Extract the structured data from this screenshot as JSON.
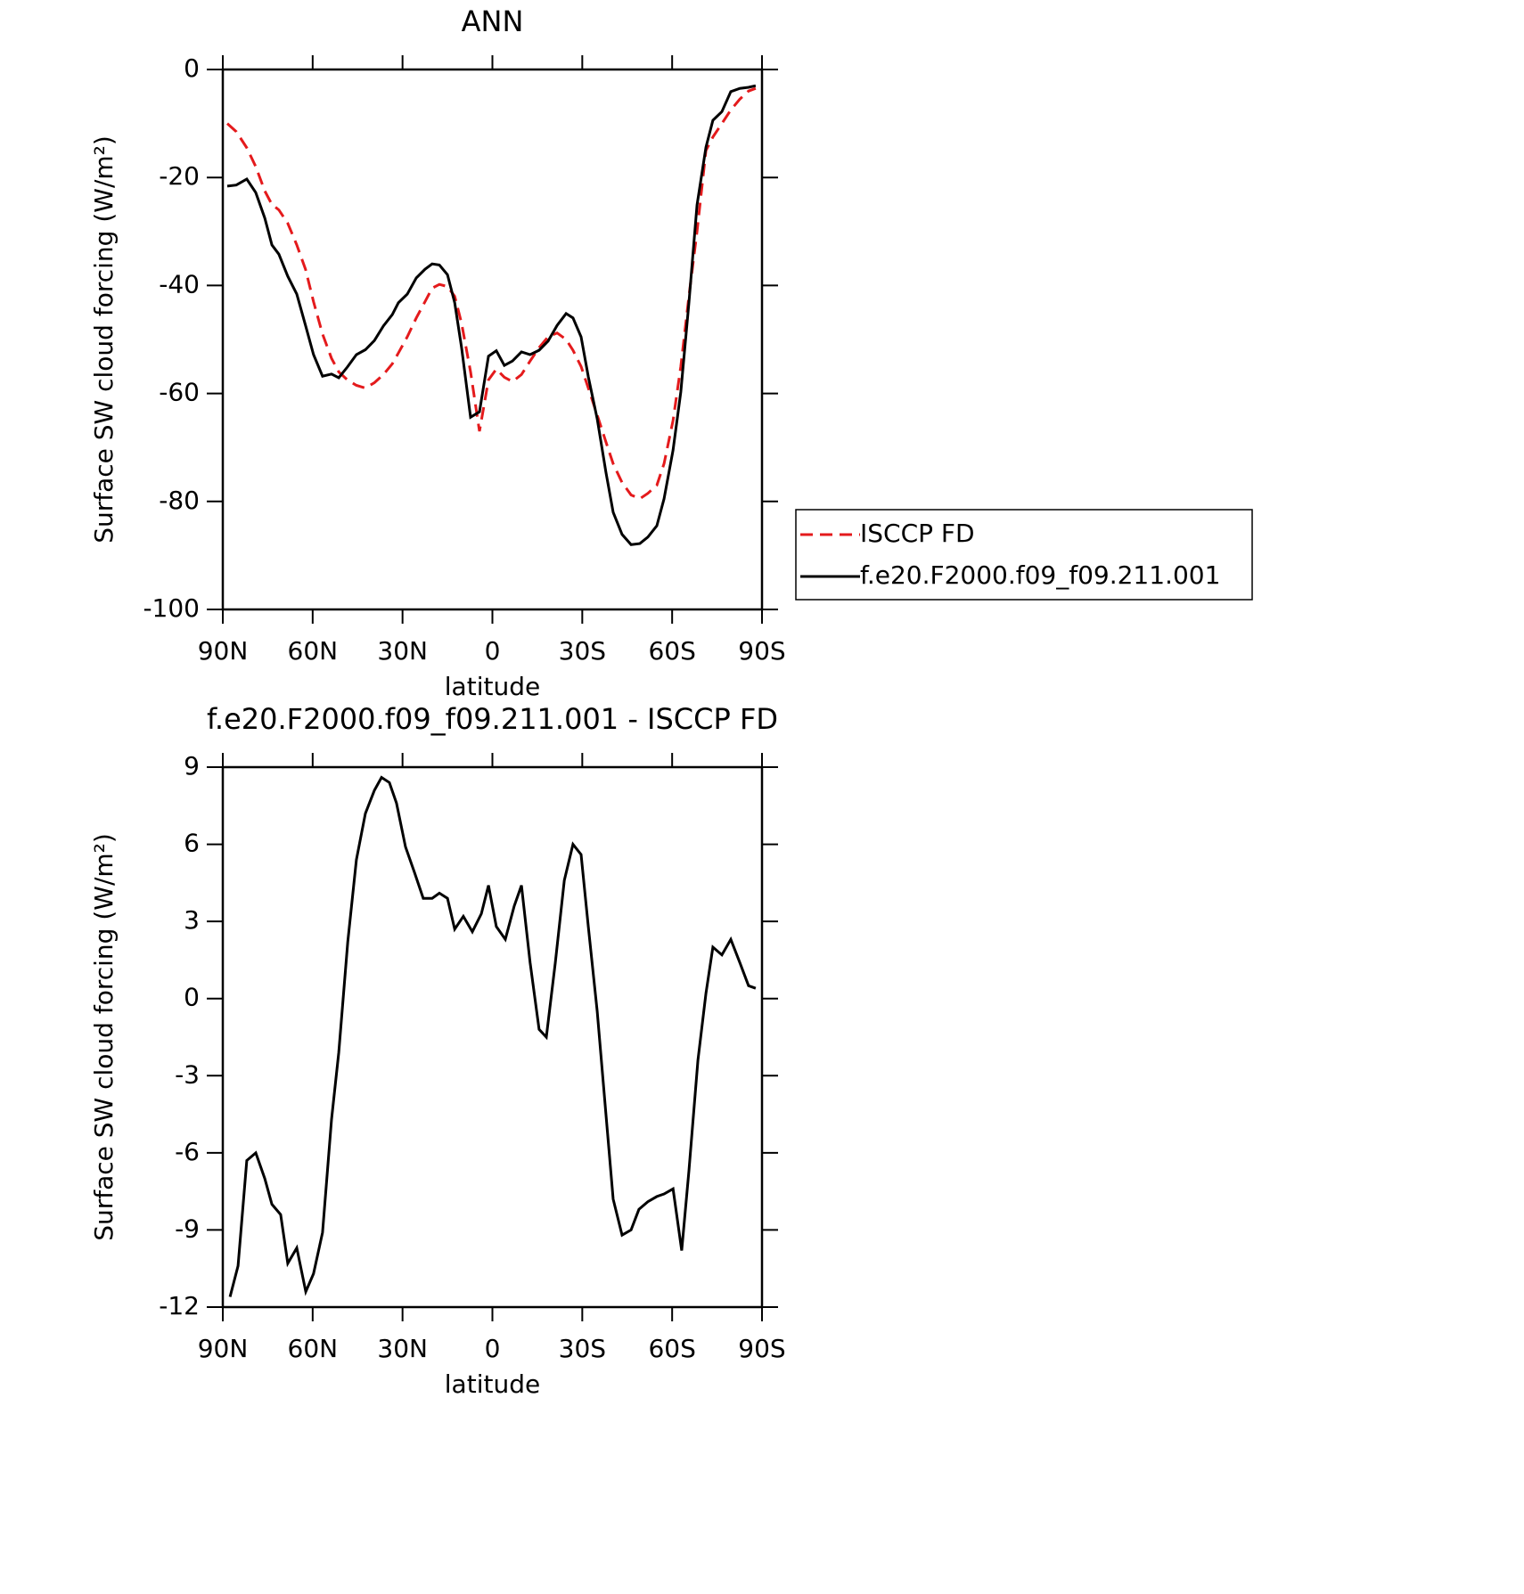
{
  "chart_data": [
    {
      "type": "line",
      "title": "ANN",
      "xlabel": "latitude",
      "ylabel": "Surface SW cloud forcing (W/m²)",
      "x": [
        88.5,
        85.5,
        82,
        79,
        76,
        73.6,
        71.3,
        68.3,
        65.3,
        62.4,
        59.7,
        56.7,
        53.7,
        51.3,
        48.4,
        45.4,
        42.4,
        39.4,
        36.4,
        33.4,
        31.4,
        28.4,
        25.4,
        22.5,
        20.1,
        17.7,
        15,
        12.6,
        10.3,
        7.3,
        4.3,
        1.3,
        -1.3,
        -4,
        -6.7,
        -9.7,
        -12.6,
        -15.6,
        -18.6,
        -21.6,
        -24.6,
        -26.9,
        -29.6,
        -32,
        -35,
        -37.9,
        -40.3,
        -43.3,
        -46.3,
        -49.2,
        -51.9,
        -54.9,
        -57.3,
        -60.3,
        -62.9,
        -65.6,
        -68.3,
        -71.3,
        -73.6,
        -76.6,
        -79.6,
        -82.6,
        -85.5,
        -87.9
      ],
      "series": [
        {
          "name": "ISCCP FD",
          "color": "#e41a1c",
          "dashed": true,
          "values": [
            -10,
            -11.5,
            -14.5,
            -18,
            -22.5,
            -25,
            -26,
            -28.5,
            -32.5,
            -37,
            -43,
            -49,
            -53.5,
            -56,
            -57.5,
            -58.5,
            -59,
            -58,
            -56.5,
            -54.5,
            -52.5,
            -49.5,
            -46,
            -43,
            -40.5,
            -39.8,
            -40.2,
            -42,
            -47,
            -56,
            -67,
            -57.5,
            -55.5,
            -57,
            -57.8,
            -56.5,
            -54,
            -51.5,
            -49.5,
            -48.8,
            -50,
            -52,
            -55,
            -59,
            -64,
            -69,
            -73,
            -76.5,
            -78.8,
            -79.5,
            -78.5,
            -77,
            -73,
            -65,
            -55,
            -42,
            -30,
            -15,
            -12.5,
            -10,
            -7.5,
            -5.5,
            -4,
            -3.5
          ]
        },
        {
          "name": "f.e20.F2000.f09_f09.211.001",
          "color": "#000000",
          "dashed": false,
          "values": [
            -21.6,
            -21.4,
            -20.3,
            -22.8,
            -27.5,
            -32.5,
            -34.2,
            -38.3,
            -41.6,
            -47.4,
            -52.8,
            -56.8,
            -56.4,
            -57.1,
            -55.1,
            -52.8,
            -51.9,
            -50.2,
            -47.5,
            -45.4,
            -43.2,
            -41.6,
            -38.6,
            -37,
            -36,
            -36.2,
            -38,
            -43.2,
            -51.5,
            -64.4,
            -63.4,
            -53.1,
            -52.1,
            -54.8,
            -54,
            -52.3,
            -52.8,
            -52,
            -50.3,
            -47.4,
            -45.2,
            -46,
            -49.5,
            -56.9,
            -64.7,
            -74.6,
            -82,
            -86.1,
            -88,
            -87.8,
            -86.6,
            -84.5,
            -79.5,
            -70.5,
            -59.7,
            -43.2,
            -25.1,
            -14.4,
            -9.4,
            -7.8,
            -4.1,
            -3.5,
            -3.3,
            -3
          ]
        }
      ],
      "xlim": [
        90,
        -90
      ],
      "xticks": [
        {
          "value": 90,
          "label": "90N"
        },
        {
          "value": 60,
          "label": "60N"
        },
        {
          "value": 30,
          "label": "30N"
        },
        0,
        {
          "value": -30,
          "label": "30S"
        },
        {
          "value": -60,
          "label": "60S"
        },
        {
          "value": -90,
          "label": "90S"
        }
      ],
      "ylim": [
        -100,
        0
      ],
      "yticks": [
        0,
        -20,
        -40,
        -60,
        -80,
        -100
      ],
      "legend": "right"
    },
    {
      "type": "line",
      "title": "f.e20.F2000.f09_f09.211.001 - ISCCP FD",
      "xlabel": "latitude",
      "ylabel": "Surface SW cloud forcing (W/m²)",
      "x": [
        87.6,
        84.9,
        82,
        79,
        76,
        73.6,
        70.7,
        68.3,
        65.3,
        62.3,
        59.7,
        56.7,
        53.7,
        51.3,
        48.3,
        45.4,
        42.4,
        39.4,
        37,
        34.4,
        32,
        29,
        26,
        23.1,
        20.1,
        17.7,
        15,
        12.6,
        9.7,
        6.7,
        3.7,
        1.3,
        -1.3,
        -4.3,
        -7.3,
        -9.7,
        -12.6,
        -15.6,
        -18,
        -21,
        -24,
        -26.9,
        -29.6,
        -32,
        -35,
        -37.9,
        -40.3,
        -43.3,
        -46.3,
        -48.9,
        -51.9,
        -54.9,
        -57.3,
        -60.3,
        -63.2,
        -65.6,
        -68.6,
        -71.3,
        -73.6,
        -76.6,
        -79.6,
        -82.6,
        -85.5,
        -87.9
      ],
      "series": [
        {
          "name": "f.e20.F2000.f09_f09.211.001 - ISCCP FD",
          "color": "#000000",
          "dashed": false,
          "values": [
            -11.6,
            -10.4,
            -6.3,
            -6,
            -7,
            -8,
            -8.4,
            -10.3,
            -9.7,
            -11.4,
            -10.7,
            -9.1,
            -4.7,
            -2.1,
            2.2,
            5.4,
            7.2,
            8.1,
            8.6,
            8.4,
            7.6,
            5.9,
            4.9,
            3.9,
            3.9,
            4.1,
            3.9,
            2.7,
            3.2,
            2.6,
            3.3,
            4.4,
            2.8,
            2.3,
            3.6,
            4.4,
            1.4,
            -1.2,
            -1.5,
            1.4,
            4.6,
            6,
            5.6,
            2.8,
            -0.5,
            -4.5,
            -7.8,
            -9.2,
            -9,
            -8.2,
            -7.9,
            -7.7,
            -7.6,
            -7.4,
            -9.8,
            -6.7,
            -2.4,
            0.2,
            2,
            1.7,
            2.3,
            1.4,
            0.5,
            0.4
          ]
        }
      ],
      "xlim": [
        90,
        -90
      ],
      "xticks": [
        {
          "value": 90,
          "label": "90N"
        },
        {
          "value": 60,
          "label": "60N"
        },
        {
          "value": 30,
          "label": "30N"
        },
        0,
        {
          "value": -30,
          "label": "30S"
        },
        {
          "value": -60,
          "label": "60S"
        },
        {
          "value": -90,
          "label": "90S"
        }
      ],
      "ylim": [
        -12,
        9
      ],
      "yticks": [
        9,
        6,
        3,
        0,
        -3,
        -6,
        -9,
        -12
      ]
    }
  ]
}
